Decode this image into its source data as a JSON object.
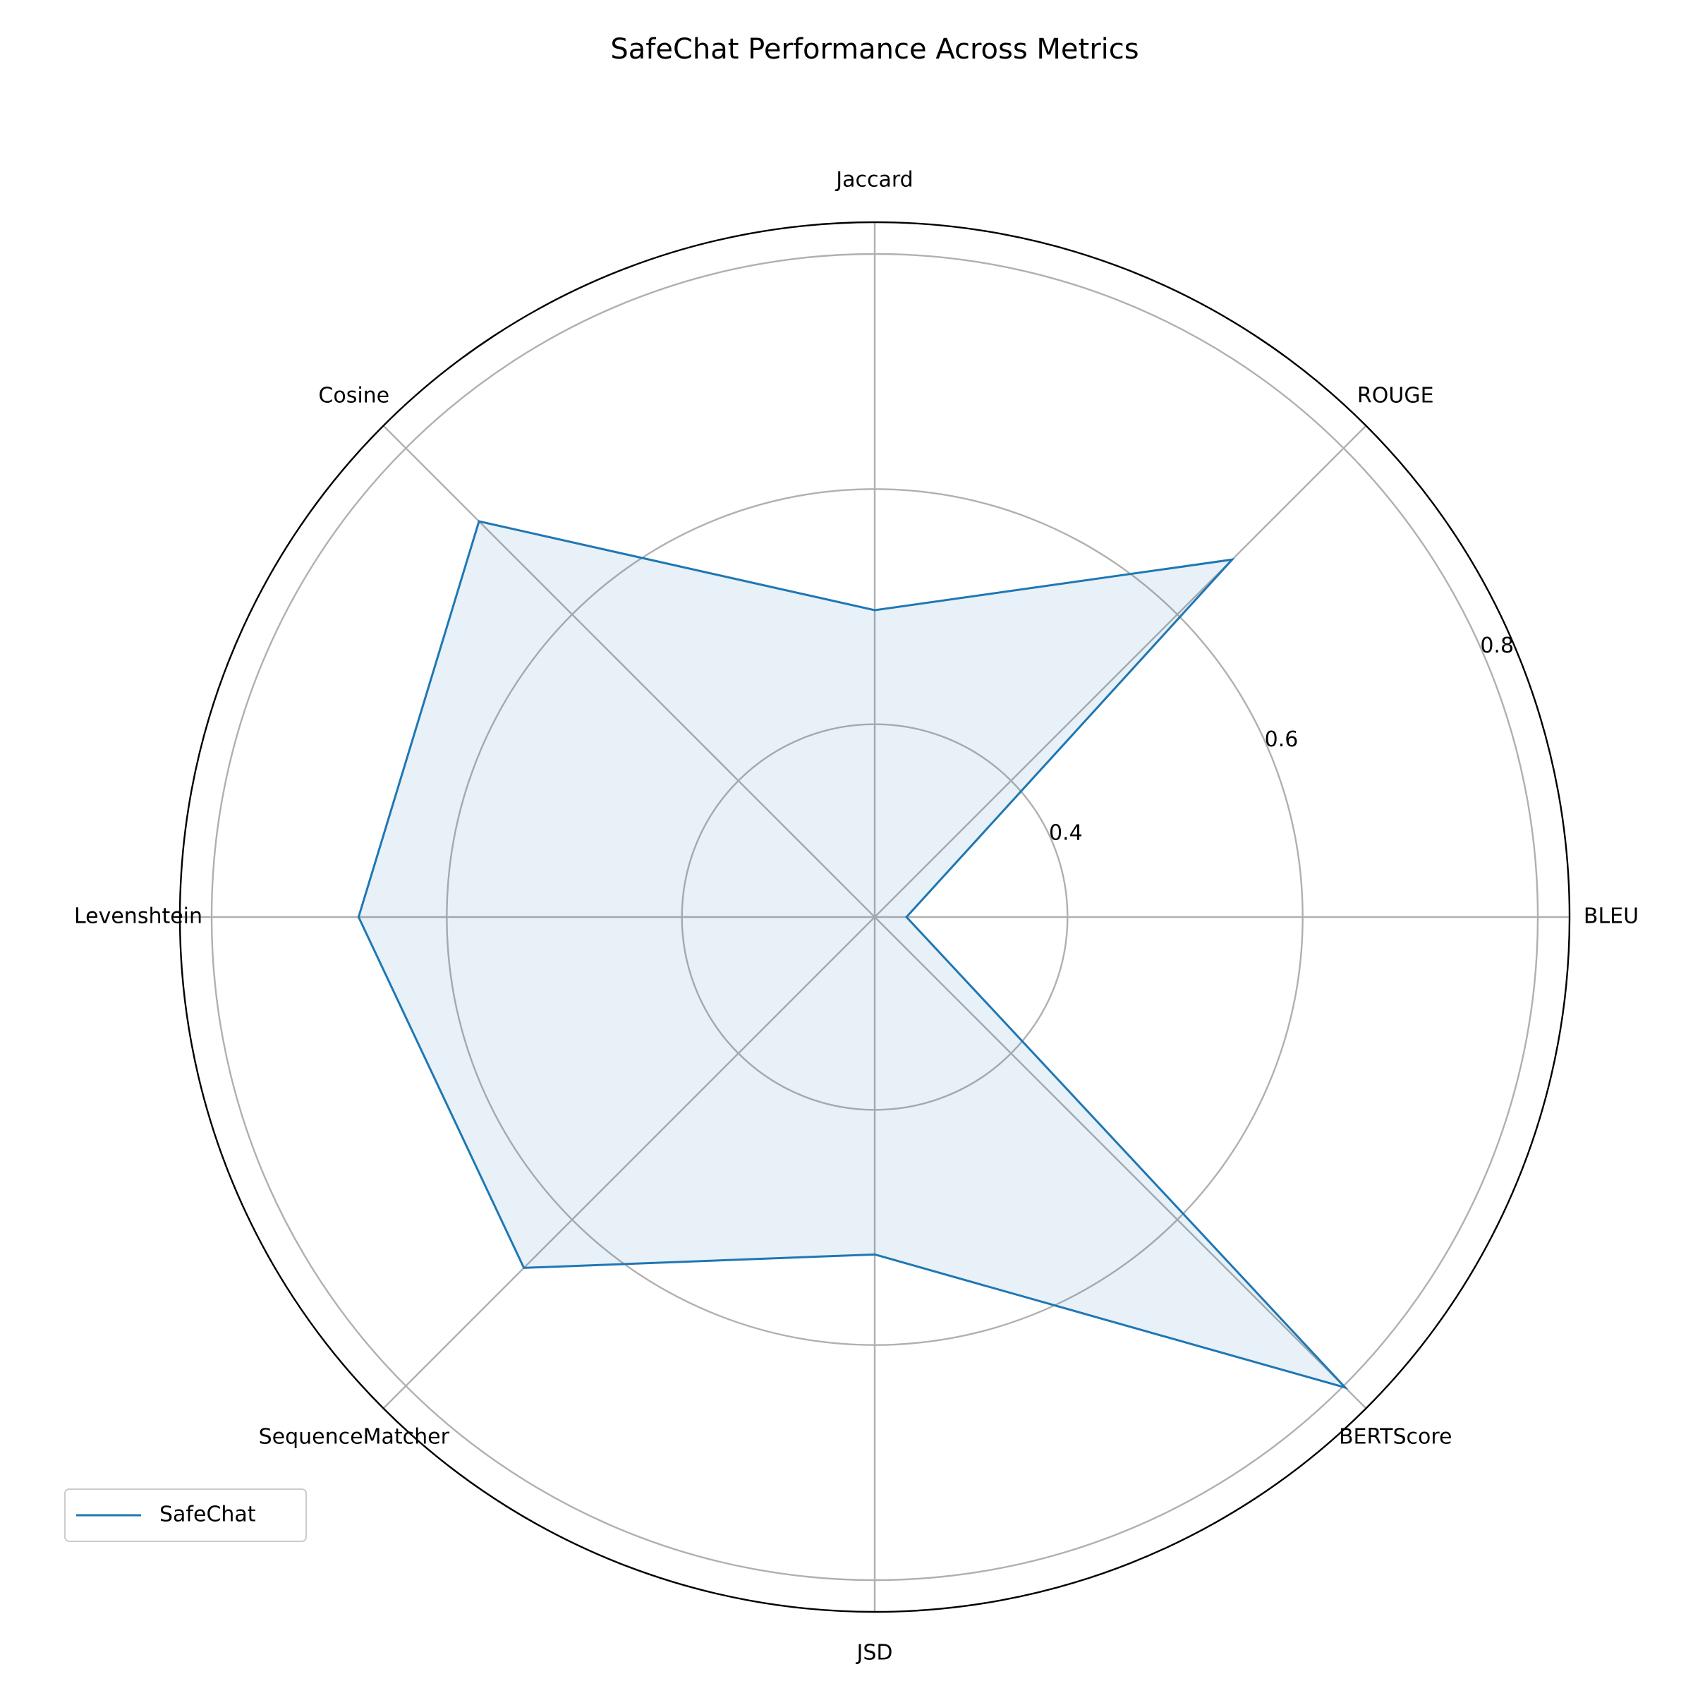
{
  "chart_data": {
    "type": "radar",
    "title": "SafeChat Performance Across Metrics",
    "categories": [
      "BLEU",
      "ROUGE",
      "Jaccard",
      "Cosine",
      "Levenshtein",
      "SequenceMatcher",
      "JSD",
      "BERTScore"
    ],
    "series": [
      {
        "name": "SafeChat",
        "color": "#1f77b4",
        "values": [
          0.263,
          0.666,
          0.497,
          0.712,
          0.675,
          0.658,
          0.523,
          0.802
        ]
      }
    ],
    "ylim": [
      0.236,
      0.827
    ],
    "yticks": [
      0.4,
      0.6,
      0.8
    ],
    "grid": true,
    "legend": "lower left"
  }
}
